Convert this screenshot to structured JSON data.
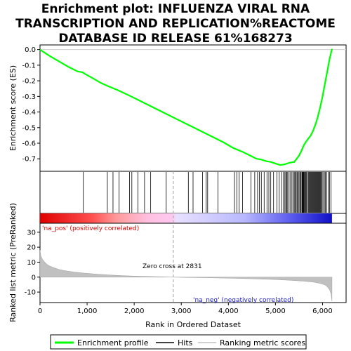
{
  "chart_data": {
    "type": "line",
    "title_lines": [
      "Enrichment plot: INFLUENZA VIRAL RNA",
      "TRANSCRIPTION AND REPLICATION%REACTOME",
      "DATABASE ID RELEASE 61%168273"
    ],
    "es_panel": {
      "ylabel": "Enrichment score (ES)",
      "ylim": [
        -0.78,
        0.03
      ],
      "yticks": [
        0.0,
        -0.1,
        -0.2,
        -0.3,
        -0.4,
        -0.5,
        -0.6,
        -0.7
      ],
      "ytick_labels": [
        "0.0",
        "-0.1",
        "-0.2",
        "-0.3",
        "-0.4",
        "-0.5",
        "-0.6",
        "-0.7"
      ],
      "series": [
        {
          "name": "Enrichment profile",
          "color": "#00ff00",
          "x": [
            0,
            200,
            400,
            600,
            800,
            900,
            950,
            1100,
            1300,
            1450,
            1650,
            1900,
            2100,
            2400,
            2700,
            3000,
            3300,
            3600,
            3900,
            4100,
            4300,
            4500,
            4600,
            4700,
            4800,
            4900,
            5000,
            5100,
            5200,
            5300,
            5400,
            5450,
            5500,
            5550,
            5600,
            5650,
            5700,
            5750,
            5800,
            5850,
            5900,
            5950,
            6000,
            6050,
            6100,
            6150,
            6200
          ],
          "y": [
            0.0,
            -0.04,
            -0.075,
            -0.11,
            -0.14,
            -0.145,
            -0.155,
            -0.18,
            -0.215,
            -0.235,
            -0.26,
            -0.295,
            -0.325,
            -0.37,
            -0.415,
            -0.46,
            -0.505,
            -0.55,
            -0.595,
            -0.63,
            -0.655,
            -0.685,
            -0.7,
            -0.705,
            -0.715,
            -0.72,
            -0.73,
            -0.74,
            -0.735,
            -0.725,
            -0.72,
            -0.7,
            -0.68,
            -0.65,
            -0.615,
            -0.59,
            -0.57,
            -0.55,
            -0.52,
            -0.48,
            -0.43,
            -0.37,
            -0.3,
            -0.22,
            -0.14,
            -0.06,
            0.005
          ]
        }
      ]
    },
    "hits": {
      "name": "Hits",
      "positions": [
        920,
        1430,
        1550,
        1680,
        1900,
        1950,
        2080,
        2220,
        2350,
        2680,
        3150,
        3250,
        3450,
        3530,
        3560,
        3780,
        4130,
        4180,
        4230,
        4300,
        4480,
        4560,
        4620,
        4660,
        4700,
        4760,
        4820,
        4860,
        4900,
        4960,
        5030,
        5080,
        5130,
        5170,
        5200,
        5220,
        5240,
        5260,
        5290,
        5320,
        5350,
        5380,
        5400,
        5420,
        5440,
        5460,
        5480,
        5500,
        5520,
        5540,
        5560,
        5570,
        5580,
        5590,
        5600,
        5615,
        5630,
        5645,
        5660,
        5680,
        5700,
        5715,
        5730,
        5745,
        5760,
        5775,
        5790,
        5805,
        5820,
        5835,
        5850,
        5865,
        5880,
        5895,
        5910,
        5925,
        5940,
        5955,
        5970,
        5990,
        6010,
        6040,
        6060,
        6090,
        6120,
        6150,
        6180
      ]
    },
    "rank_panel": {
      "ylabel": "Ranked list metric (PreRanked)",
      "ylim": [
        -17,
        36
      ],
      "yticks": [
        30,
        20,
        10,
        0,
        -10
      ],
      "ytick_labels": [
        "30",
        "20",
        "10",
        "0",
        "-10"
      ],
      "series": [
        {
          "name": "Ranking metric scores",
          "color": "#c0c0c0",
          "x": [
            0,
            20,
            50,
            100,
            150,
            200,
            300,
            400,
            500,
            700,
            900,
            1200,
            1500,
            1800,
            2100,
            2400,
            2700,
            2831,
            3100,
            3500,
            4000,
            4500,
            5000,
            5300,
            5600,
            5800,
            5950,
            6050,
            6100,
            6150,
            6180,
            6200
          ],
          "y": [
            18,
            14,
            12,
            10,
            8.5,
            7.5,
            6.2,
            5.2,
            4.5,
            3.5,
            2.8,
            2.0,
            1.4,
            0.9,
            0.6,
            0.35,
            0.12,
            0.0,
            -0.2,
            -0.4,
            -0.7,
            -1.1,
            -1.6,
            -2.1,
            -2.7,
            -3.3,
            -4.2,
            -5.2,
            -6.5,
            -8.5,
            -11,
            -16
          ]
        }
      ],
      "annotations": {
        "pos": "'na_pos' (positively correlated)",
        "neg": "'na_neg' (negatively correlated)",
        "zero_cross": "Zero cross at 2831"
      },
      "zero_cross": 2831
    },
    "xaxis": {
      "xlabel": "Rank in Ordered Dataset",
      "xlim": [
        0,
        6500
      ],
      "xticks": [
        0,
        1000,
        2000,
        3000,
        4000,
        5000,
        6000
      ],
      "xtick_labels": [
        "0",
        "1,000",
        "2,000",
        "3,000",
        "4,000",
        "5,000",
        "6,000"
      ],
      "n_genes": 6200
    },
    "legend": {
      "placement": "bottom",
      "items": [
        {
          "label": "Enrichment profile",
          "color": "#00ff00",
          "kind": "thick-line"
        },
        {
          "label": "Hits",
          "color": "#000000",
          "kind": "thin-line"
        },
        {
          "label": "Ranking metric scores",
          "color": "#c0c0c0",
          "kind": "thin-line"
        }
      ]
    }
  }
}
